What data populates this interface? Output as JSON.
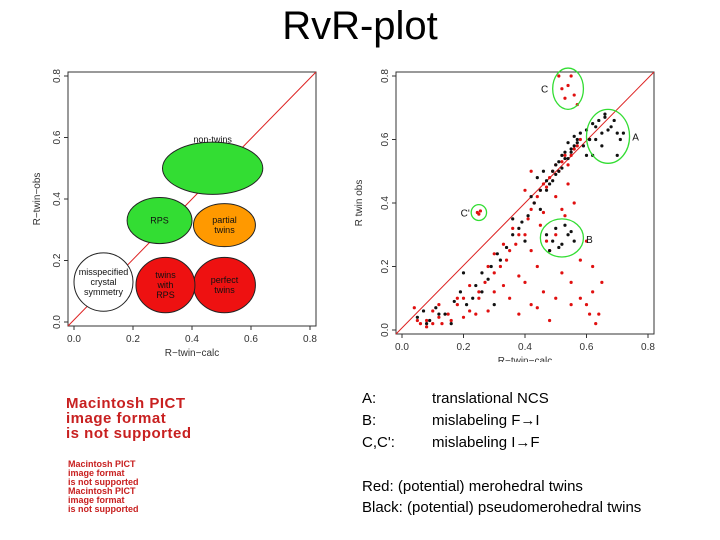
{
  "slide": {
    "title": "RvR-plot"
  },
  "pict_placeholders": [
    {
      "line1": "Macintosh PICT",
      "line2": "image format",
      "line3": "is not supported"
    },
    {
      "line1": "Macintosh PICT",
      "line2": "image format",
      "line3": "is not supported"
    },
    {
      "line1": "Macintosh PICT",
      "line2": "image format",
      "line3": "is not supported"
    }
  ],
  "legend": [
    {
      "key": "A:",
      "value": "translational NCS"
    },
    {
      "key": "B:",
      "value": "mislabeling F→I"
    },
    {
      "key": "C,C':",
      "value": "mislabeling I→F"
    }
  ],
  "notes": {
    "red": "Red: (potential) merohedral twins",
    "black": "Black: (potential) pseudomerohedral twins"
  },
  "colors": {
    "diagonal": "#dd2222",
    "green": "#33dd33",
    "orange": "#ff9900",
    "red": "#ee1111",
    "white": "#ffffff",
    "red_points": "#e01010",
    "black_points": "#111111",
    "annot_circle": "#33dd33"
  },
  "chart_data": [
    {
      "type": "diagram",
      "title": "",
      "xlabel": "R−twin−calc",
      "ylabel": "R−twin−obs",
      "xlim": [
        0,
        0.8
      ],
      "ylim": [
        0,
        0.8
      ],
      "xticks": [
        "0.0",
        "0.2",
        "0.4",
        "0.6",
        "0.8"
      ],
      "yticks": [
        "0.0",
        "0.2",
        "0.4",
        "0.6",
        "0.8"
      ],
      "diagonal": true,
      "regions": [
        {
          "label": "non-twins",
          "cx": 0.47,
          "cy": 0.5,
          "rx": 0.17,
          "ry": 0.085,
          "color": "green"
        },
        {
          "label": "partial twins",
          "cx": 0.51,
          "cy": 0.315,
          "rx": 0.105,
          "ry": 0.07,
          "color": "orange"
        },
        {
          "label": "RPS",
          "cx": 0.29,
          "cy": 0.33,
          "rx": 0.11,
          "ry": 0.075,
          "color": "green"
        },
        {
          "label": "perfect twins",
          "cx": 0.51,
          "cy": 0.12,
          "rx": 0.105,
          "ry": 0.09,
          "color": "red"
        },
        {
          "label": "twins with RPS",
          "cx": 0.31,
          "cy": 0.12,
          "rx": 0.1,
          "ry": 0.09,
          "color": "red"
        },
        {
          "label": "misspecified crystal symmetry",
          "cx": 0.1,
          "cy": 0.13,
          "rx": 0.1,
          "ry": 0.095,
          "color": "white"
        }
      ]
    },
    {
      "type": "scatter",
      "title": "",
      "xlabel": "R−twin−calc",
      "ylabel": "R twin obs",
      "xlim": [
        0,
        0.8
      ],
      "ylim": [
        0,
        0.8
      ],
      "xticks": [
        "0.0",
        "0.2",
        "0.4",
        "0.6",
        "0.8"
      ],
      "yticks": [
        "0.0",
        "0.2",
        "0.4",
        "0.6",
        "0.8"
      ],
      "diagonal": true,
      "series": [
        {
          "name": "red",
          "color": "red_points",
          "x": [
            0.06,
            0.08,
            0.1,
            0.12,
            0.13,
            0.15,
            0.18,
            0.2,
            0.22,
            0.25,
            0.27,
            0.3,
            0.32,
            0.34,
            0.35,
            0.37,
            0.38,
            0.4,
            0.41,
            0.42,
            0.43,
            0.44,
            0.45,
            0.46,
            0.47,
            0.48,
            0.49,
            0.5,
            0.51,
            0.52,
            0.53,
            0.54,
            0.55,
            0.56,
            0.57,
            0.58,
            0.6,
            0.62,
            0.64,
            0.35,
            0.38,
            0.4,
            0.42,
            0.44,
            0.46,
            0.48,
            0.5,
            0.52,
            0.55,
            0.58,
            0.6,
            0.3,
            0.28,
            0.25,
            0.22,
            0.2,
            0.18,
            0.45,
            0.47,
            0.5,
            0.53,
            0.56,
            0.62,
            0.65,
            0.55,
            0.48,
            0.44,
            0.42,
            0.36,
            0.33,
            0.28,
            0.24,
            0.12,
            0.16,
            0.1,
            0.08,
            0.05,
            0.04,
            0.5,
            0.52,
            0.54,
            0.46,
            0.42,
            0.4,
            0.58,
            0.61,
            0.63,
            0.33,
            0.3,
            0.38
          ],
          "y": [
            0.02,
            0.03,
            0.02,
            0.04,
            0.02,
            0.05,
            0.08,
            0.1,
            0.06,
            0.12,
            0.15,
            0.18,
            0.2,
            0.22,
            0.25,
            0.27,
            0.3,
            0.3,
            0.35,
            0.38,
            0.4,
            0.42,
            0.44,
            0.46,
            0.45,
            0.48,
            0.5,
            0.52,
            0.5,
            0.53,
            0.55,
            0.52,
            0.55,
            0.57,
            0.58,
            0.6,
            0.08,
            0.12,
            0.05,
            0.1,
            0.05,
            0.15,
            0.08,
            0.2,
            0.12,
            0.25,
            0.1,
            0.18,
            0.15,
            0.22,
            0.28,
            0.12,
            0.06,
            0.1,
            0.14,
            0.04,
            0.1,
            0.33,
            0.28,
            0.3,
            0.36,
            0.4,
            0.2,
            0.15,
            0.08,
            0.03,
            0.07,
            0.25,
            0.32,
            0.14,
            0.2,
            0.05,
            0.08,
            0.03,
            0.06,
            0.01,
            0.03,
            0.07,
            0.42,
            0.38,
            0.46,
            0.37,
            0.5,
            0.44,
            0.1,
            0.05,
            0.02,
            0.27,
            0.24,
            0.17
          ]
        },
        {
          "name": "black",
          "color": "black_points",
          "x": [
            0.05,
            0.07,
            0.09,
            0.11,
            0.14,
            0.17,
            0.19,
            0.21,
            0.24,
            0.26,
            0.29,
            0.31,
            0.34,
            0.36,
            0.39,
            0.41,
            0.43,
            0.45,
            0.47,
            0.49,
            0.5,
            0.51,
            0.52,
            0.53,
            0.54,
            0.55,
            0.56,
            0.57,
            0.58,
            0.6,
            0.62,
            0.64,
            0.66,
            0.68,
            0.7,
            0.44,
            0.46,
            0.48,
            0.5,
            0.52,
            0.38,
            0.4,
            0.32,
            0.28,
            0.23,
            0.16,
            0.12,
            0.08,
            0.54,
            0.56,
            0.42,
            0.36,
            0.6,
            0.63,
            0.47,
            0.49,
            0.51,
            0.53,
            0.59,
            0.61,
            0.65,
            0.45,
            0.55,
            0.57,
            0.3,
            0.26,
            0.2
          ],
          "y": [
            0.04,
            0.06,
            0.03,
            0.07,
            0.05,
            0.09,
            0.12,
            0.08,
            0.14,
            0.18,
            0.2,
            0.24,
            0.26,
            0.3,
            0.34,
            0.36,
            0.4,
            0.44,
            0.47,
            0.5,
            0.52,
            0.53,
            0.55,
            0.56,
            0.54,
            0.57,
            0.58,
            0.6,
            0.62,
            0.63,
            0.65,
            0.66,
            0.68,
            0.64,
            0.62,
            0.48,
            0.5,
            0.46,
            0.49,
            0.51,
            0.32,
            0.28,
            0.22,
            0.16,
            0.1,
            0.02,
            0.05,
            0.02,
            0.59,
            0.61,
            0.42,
            0.35,
            0.55,
            0.6,
            0.44,
            0.47,
            0.5,
            0.54,
            0.58,
            0.6,
            0.62,
            0.38,
            0.56,
            0.59,
            0.08,
            0.12,
            0.18
          ]
        },
        {
          "name": "C points",
          "color": "red_points",
          "x": [
            0.51,
            0.52,
            0.53,
            0.54,
            0.55,
            0.56,
            0.57
          ],
          "y": [
            0.8,
            0.76,
            0.73,
            0.77,
            0.8,
            0.74,
            0.71
          ]
        },
        {
          "name": "C' points",
          "color": "red_points",
          "x": [
            0.245,
            0.25,
            0.255
          ],
          "y": [
            0.37,
            0.365,
            0.375
          ]
        },
        {
          "name": "B points",
          "color": "black_points",
          "x": [
            0.47,
            0.49,
            0.5,
            0.52,
            0.54,
            0.56,
            0.48,
            0.51,
            0.53,
            0.55
          ],
          "y": [
            0.3,
            0.28,
            0.32,
            0.27,
            0.3,
            0.28,
            0.25,
            0.26,
            0.33,
            0.31
          ]
        },
        {
          "name": "A points",
          "color": "black_points",
          "x": [
            0.61,
            0.63,
            0.65,
            0.67,
            0.69,
            0.71,
            0.62,
            0.66,
            0.7,
            0.72
          ],
          "y": [
            0.6,
            0.64,
            0.58,
            0.63,
            0.66,
            0.6,
            0.55,
            0.67,
            0.55,
            0.62
          ]
        }
      ],
      "annotations": [
        {
          "label": "C",
          "cx": 0.54,
          "cy": 0.76,
          "rx": 0.05,
          "ry": 0.065
        },
        {
          "label": "A",
          "cx": 0.67,
          "cy": 0.61,
          "rx": 0.07,
          "ry": 0.085
        },
        {
          "label": "C'",
          "cx": 0.25,
          "cy": 0.37,
          "rx": 0.025,
          "ry": 0.025
        },
        {
          "label": "B",
          "cx": 0.52,
          "cy": 0.29,
          "rx": 0.07,
          "ry": 0.06
        }
      ]
    }
  ]
}
